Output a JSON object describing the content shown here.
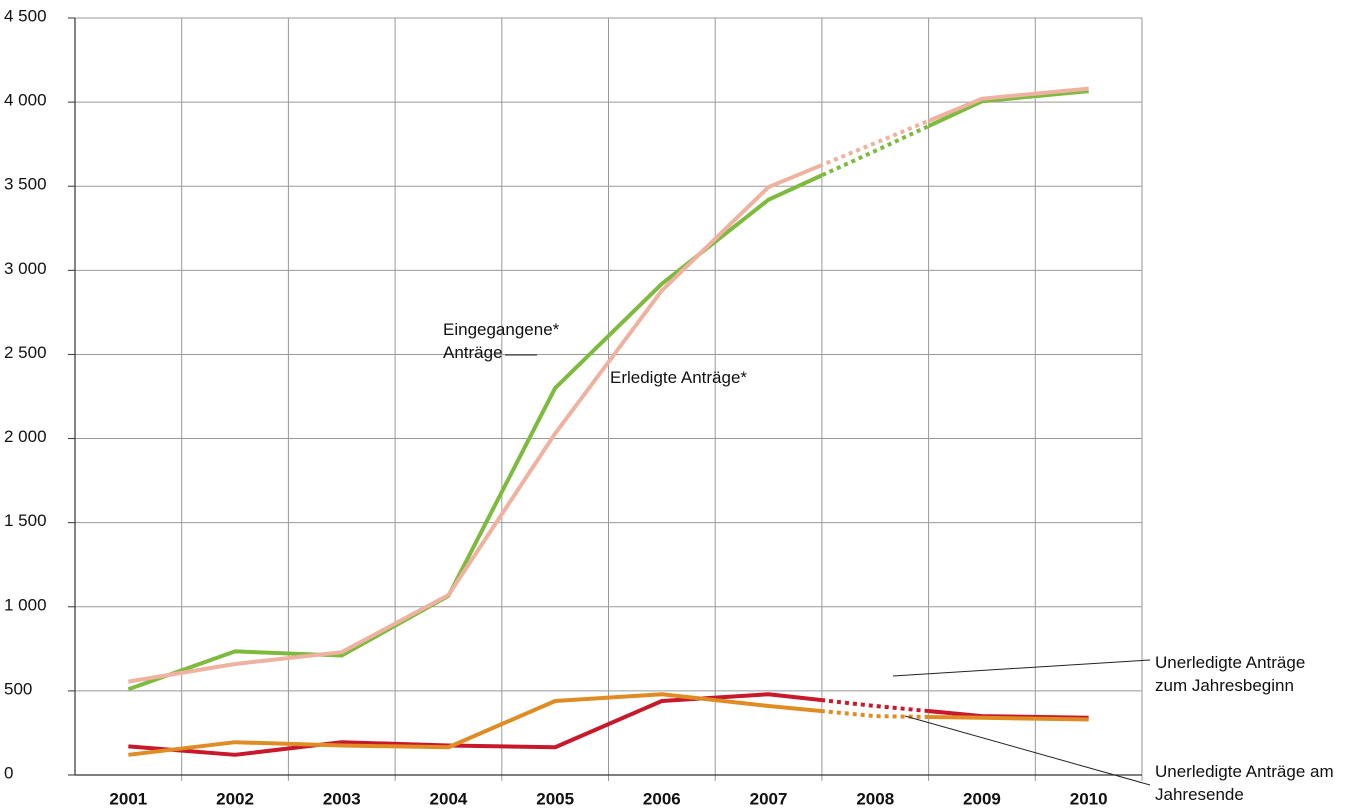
{
  "chart_data": {
    "type": "line",
    "categories": [
      "2001",
      "2002",
      "2003",
      "2004",
      "2005",
      "2006",
      "2007",
      "2008",
      "2009",
      "2010"
    ],
    "dotted_categories": [
      "2008"
    ],
    "series": [
      {
        "name": "Eingegangene* Anträge",
        "color": "#7cbb3d",
        "values": [
          510,
          735,
          710,
          1065,
          2300,
          2920,
          3420,
          3710,
          4005,
          4065
        ]
      },
      {
        "name": "Erledigte Anträge*",
        "color": "#efb2a0",
        "values": [
          555,
          660,
          730,
          1070,
          2030,
          2880,
          3495,
          3757,
          4020,
          4080
        ]
      },
      {
        "name": "Unerledigte Anträge zum Jahresbeginn",
        "color": "#c8182b",
        "values": [
          170,
          120,
          195,
          175,
          165,
          440,
          480,
          410,
          350,
          340
        ]
      },
      {
        "name": "Unerledigte Anträge am Jahresende",
        "color": "#e08c24",
        "values": [
          120,
          195,
          175,
          165,
          440,
          480,
          410,
          350,
          340,
          330
        ]
      }
    ],
    "ylim": [
      0,
      4500
    ],
    "yticks": [
      0,
      500,
      {
        "value": 1000,
        "label": "1 000"
      },
      {
        "value": 1500,
        "label": "1 500"
      },
      {
        "value": 2000,
        "label": "2 000"
      },
      {
        "value": 2500,
        "label": "2 500"
      },
      {
        "value": 3000,
        "label": "3 000"
      },
      {
        "value": 3500,
        "label": "3 500"
      },
      {
        "value": 4000,
        "label": "4 000"
      },
      {
        "value": 4500,
        "label": "4 500"
      }
    ],
    "grid": true
  }
}
